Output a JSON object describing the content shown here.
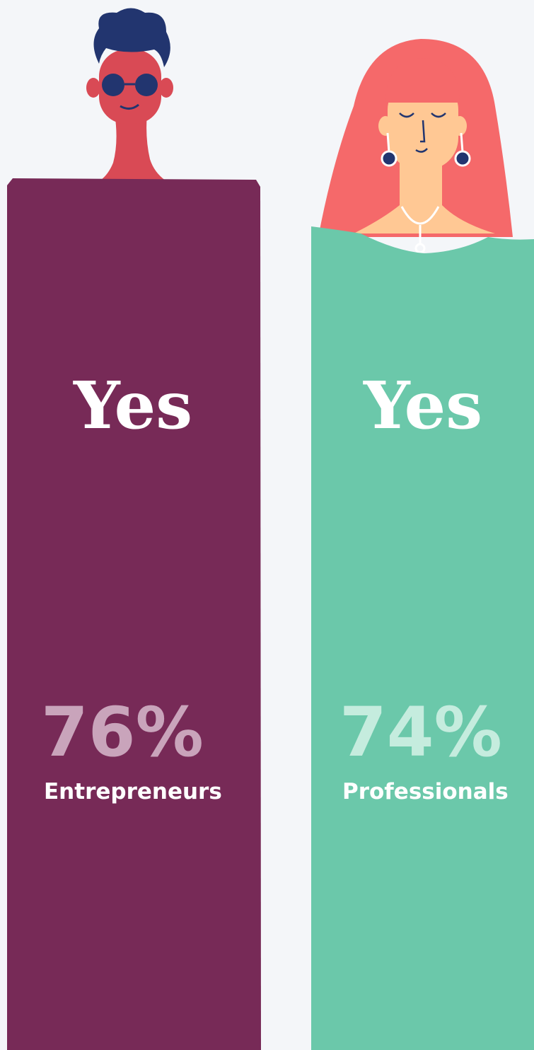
{
  "columns": [
    {
      "answer": "Yes",
      "percent": "76%",
      "group": "Entrepreneurs"
    },
    {
      "answer": "Yes",
      "percent": "74%",
      "group": "Professionals"
    }
  ]
}
